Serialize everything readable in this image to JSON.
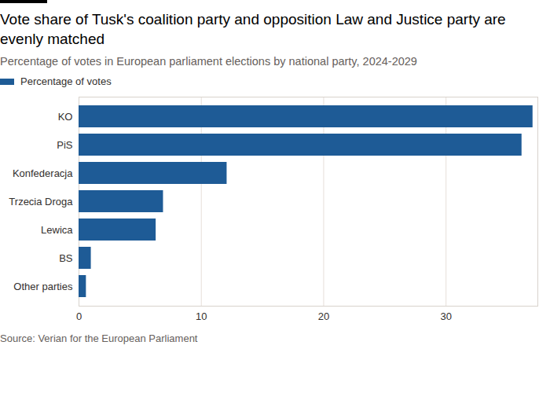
{
  "chart_data": {
    "type": "bar",
    "orientation": "horizontal",
    "title": "Vote share of Tusk's coalition party and opposition Law and Justice party are evenly matched",
    "subtitle": "Percentage of votes in European parliament elections by national party, 2024-2029",
    "categories": [
      "KO",
      "PiS",
      "Konfederacja",
      "Trzecia Droga",
      "Lewica",
      "BS",
      "Other parties"
    ],
    "series": [
      {
        "name": "Percentage of votes",
        "color": "#1e5b96",
        "values": [
          37.1,
          36.2,
          12.1,
          6.9,
          6.3,
          1.0,
          0.6
        ]
      }
    ],
    "legend": "top-left",
    "xlim": [
      0,
      37.5
    ],
    "xticks": [
      0,
      10,
      20,
      30
    ],
    "grid": true,
    "source": "Source: Verian for the European Parliament"
  }
}
